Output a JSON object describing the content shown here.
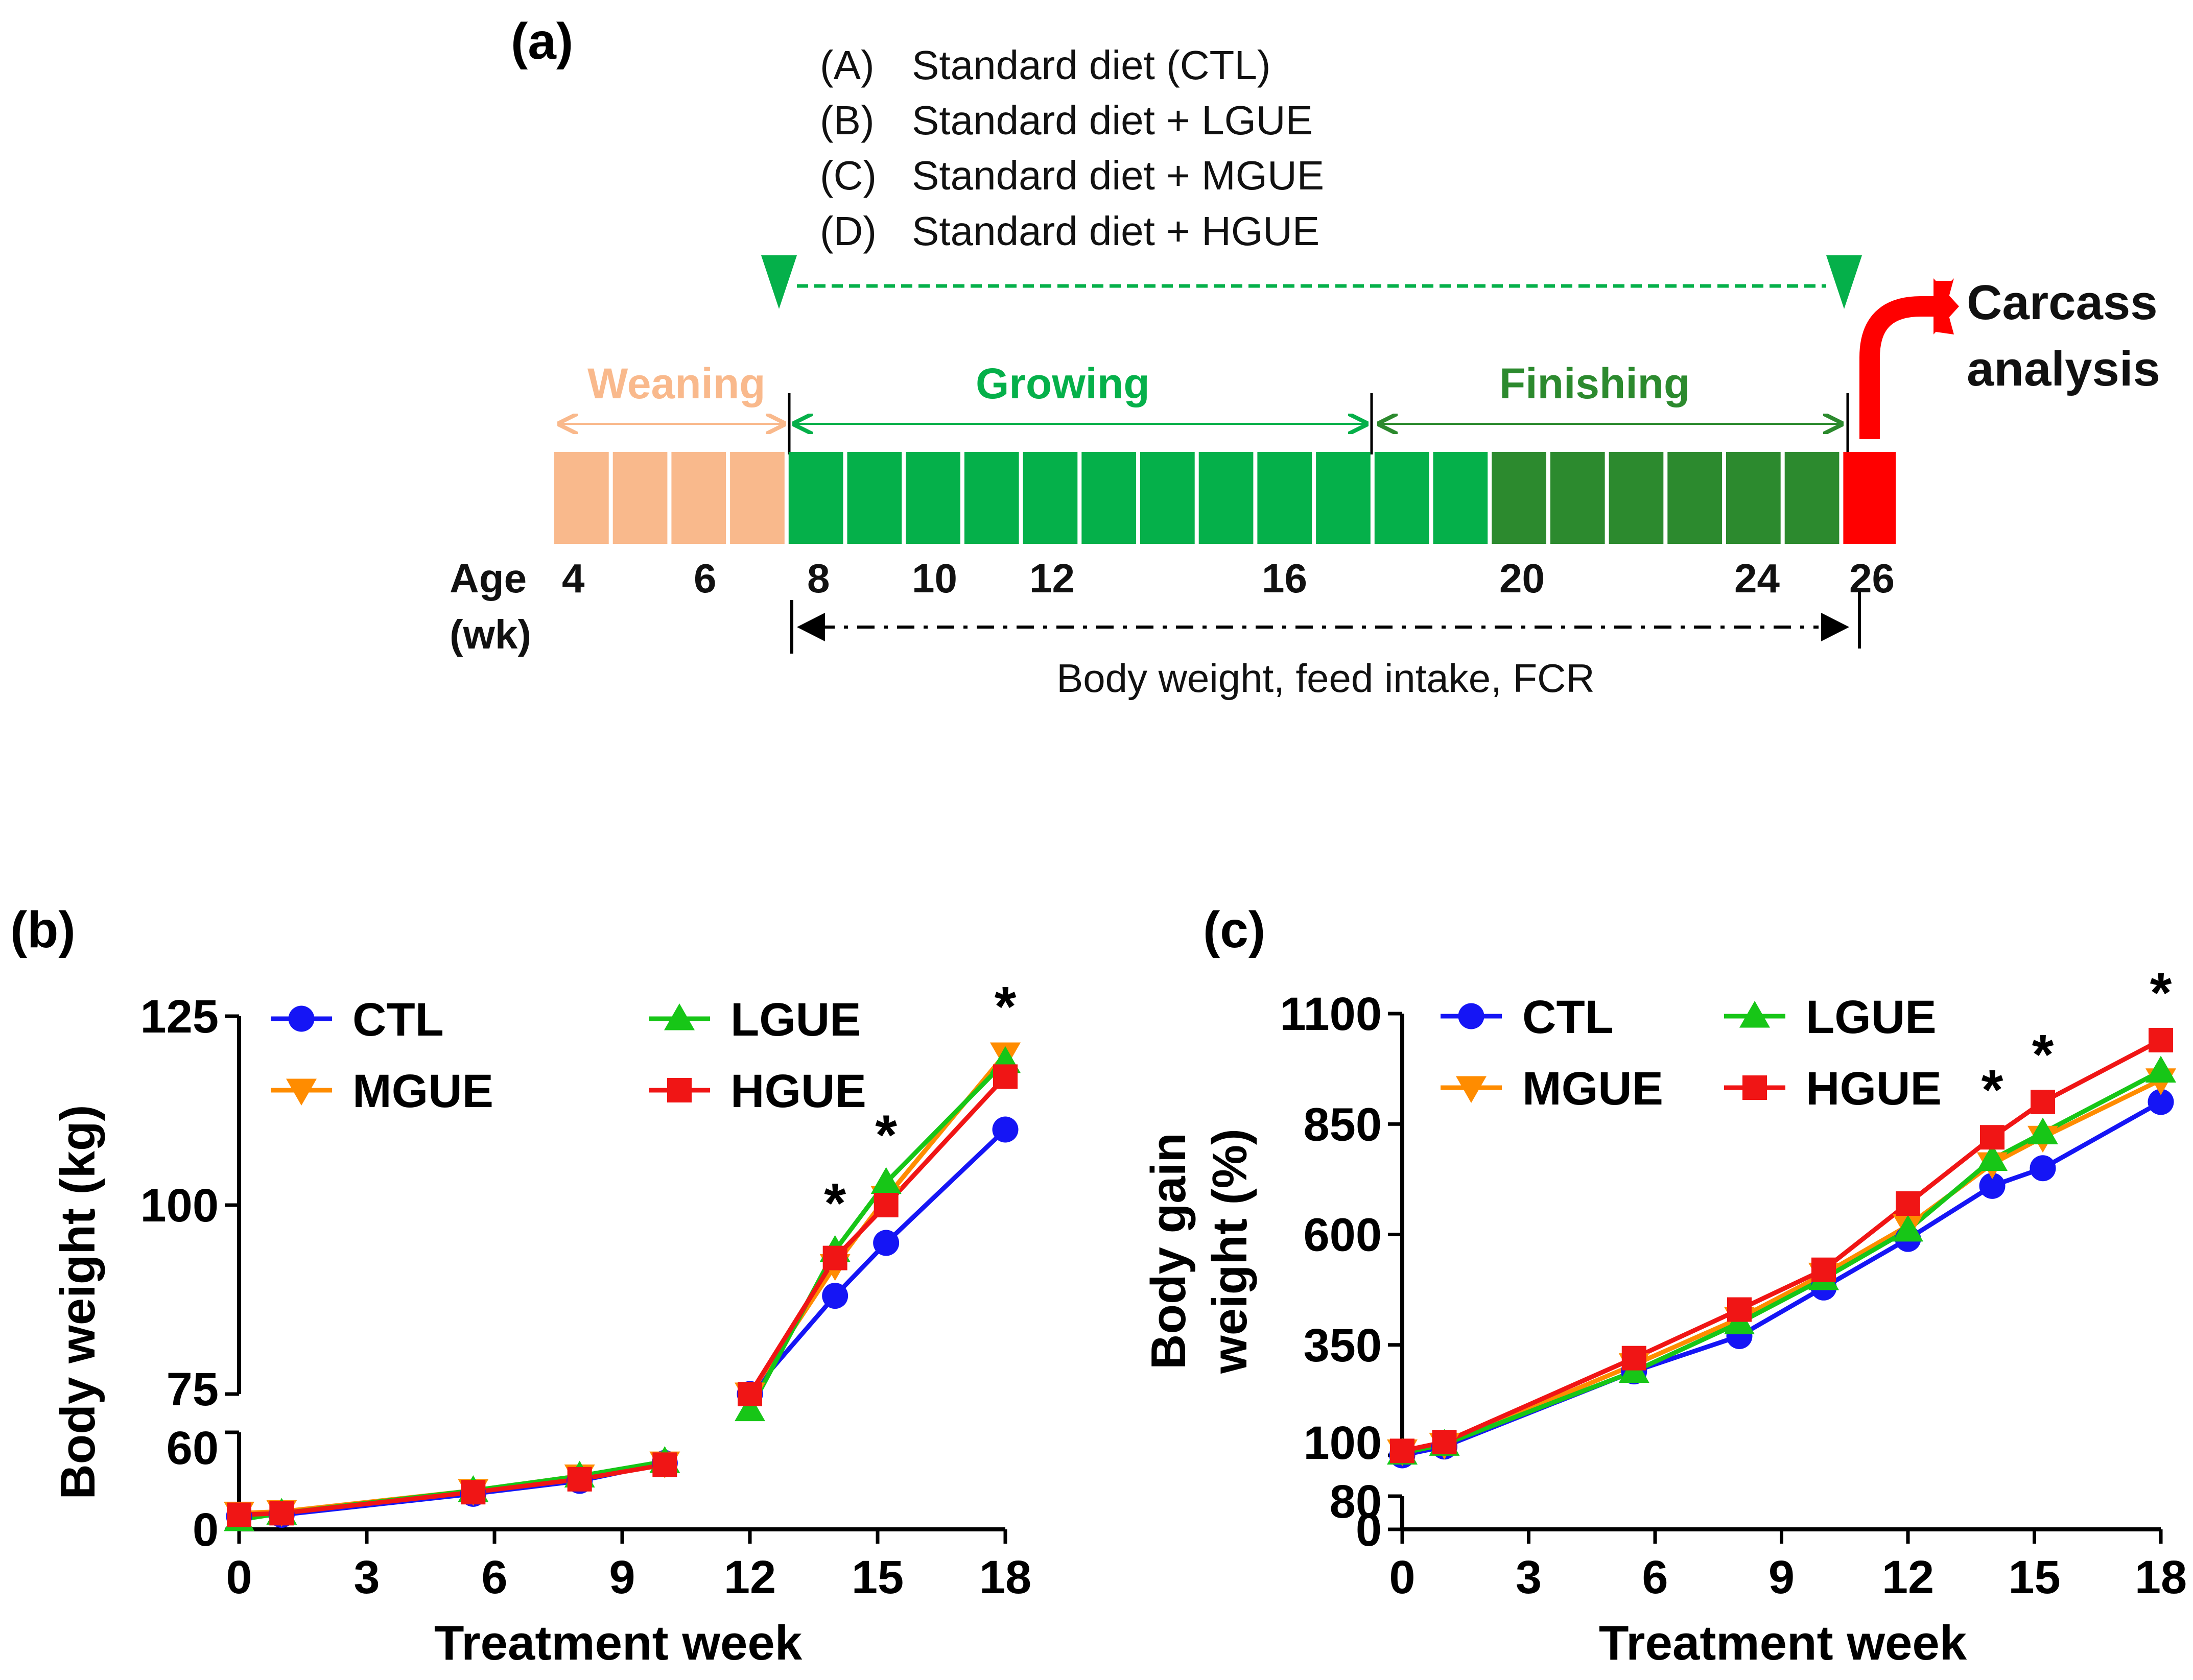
{
  "panel_a": {
    "label": "(a)",
    "diets": [
      {
        "code": "(A)",
        "text": "Standard diet (CTL)"
      },
      {
        "code": "(B)",
        "text": "Standard diet + LGUE"
      },
      {
        "code": "(C)",
        "text": "Standard diet + MGUE"
      },
      {
        "code": "(D)",
        "text": "Standard diet + HGUE"
      }
    ],
    "phases": {
      "weaning": "Weaning",
      "growing": "Growing",
      "finishing": "Finishing"
    },
    "carcass": [
      "Carcass",
      "analysis"
    ],
    "age_label": [
      "Age",
      "(wk)"
    ],
    "age_ticks": [
      "4",
      "6",
      "8",
      "10",
      "12",
      "16",
      "20",
      "24",
      "26"
    ],
    "measure_label": "Body weight, feed intake, FCR",
    "colors": {
      "weaning": "#F9B98C",
      "growing": "#05B04A",
      "finishing": "#2C8A2E",
      "carcass": "#FF0000",
      "dashed_arrow": "#05B04A"
    }
  },
  "series_colors": {
    "CTL": "#1515F5",
    "MGUE": "#FF8C00",
    "LGUE": "#17C617",
    "HGUE": "#F01515"
  },
  "chart_data": [
    {
      "id": "b",
      "label": "(b)",
      "type": "line",
      "title": "",
      "xlabel": "Treatment week",
      "ylabel": "Body weight (kg)",
      "xlim": [
        0,
        18
      ],
      "xticks": [
        "0",
        "3",
        "6",
        "9",
        "12",
        "15",
        "18"
      ],
      "ylim_lower": [
        0,
        60
      ],
      "ylim_upper": [
        75,
        125
      ],
      "yticks": [
        "0",
        "60",
        "75",
        "100",
        "125"
      ],
      "legend": [
        "CTL",
        "LGUE",
        "MGUE",
        "HGUE"
      ],
      "legend_position": "top-left",
      "significance": [
        {
          "x": 14,
          "mark": "*"
        },
        {
          "x": 15.2,
          "mark": "*"
        },
        {
          "x": 18,
          "mark": "*"
        }
      ],
      "series": [
        {
          "name": "CTL",
          "marker": "circle",
          "x": [
            0,
            1,
            5.5,
            8,
            10
          ],
          "values": [
            8,
            9,
            22,
            30,
            41
          ],
          "x2": [
            12,
            14,
            15.2,
            18
          ],
          "values2": [
            75,
            88,
            95,
            110
          ]
        },
        {
          "name": "MGUE",
          "marker": "triangle-down",
          "x": [
            0,
            1,
            5.5,
            8,
            10
          ],
          "values": [
            10,
            11,
            24,
            33,
            41
          ],
          "x2": [
            12,
            14,
            15.2,
            18
          ],
          "values2": [
            75,
            92,
            101,
            120
          ]
        },
        {
          "name": "LGUE",
          "marker": "triangle-up",
          "x": [
            0,
            1,
            5.5,
            8,
            10
          ],
          "values": [
            6,
            10,
            24,
            33,
            42
          ],
          "x2": [
            12,
            14,
            15.2,
            18
          ],
          "values2": [
            74,
            94,
            103,
            119
          ]
        },
        {
          "name": "HGUE",
          "marker": "square",
          "x": [
            0,
            1,
            5.5,
            8,
            10
          ],
          "values": [
            9,
            10,
            23,
            31,
            40
          ],
          "x2": [
            12,
            14,
            15.2,
            18
          ],
          "values2": [
            75,
            93,
            100,
            117
          ]
        }
      ]
    },
    {
      "id": "c",
      "label": "(c)",
      "type": "line",
      "title": "",
      "xlabel": "Treatment week",
      "ylabel": [
        "Body gain",
        "weight (%)"
      ],
      "xlim": [
        0,
        18
      ],
      "xticks": [
        "0",
        "3",
        "6",
        "9",
        "12",
        "15",
        "18"
      ],
      "ylim_lower": [
        0,
        80
      ],
      "ylim_upper": [
        100,
        1100
      ],
      "yticks": [
        "0",
        "80",
        "100",
        "350",
        "600",
        "850",
        "1100"
      ],
      "legend": [
        "CTL",
        "LGUE",
        "MGUE",
        "HGUE"
      ],
      "legend_position": "top-left",
      "significance": [
        {
          "x": 14,
          "mark": "*"
        },
        {
          "x": 15.2,
          "mark": "*"
        },
        {
          "x": 18,
          "mark": "*"
        }
      ],
      "series": [
        {
          "name": "CTL",
          "marker": "circle",
          "x": [
            0,
            1,
            5.5,
            8,
            10,
            12,
            14,
            15.2,
            18
          ],
          "values": [
            100,
            120,
            290,
            370,
            480,
            590,
            710,
            750,
            900
          ]
        },
        {
          "name": "MGUE",
          "marker": "triangle-down",
          "x": [
            0,
            1,
            5.5,
            8,
            10,
            12,
            14,
            15.2,
            18
          ],
          "values": [
            110,
            125,
            305,
            410,
            510,
            620,
            760,
            820,
            950
          ]
        },
        {
          "name": "LGUE",
          "marker": "triangle-up",
          "x": [
            0,
            1,
            5.5,
            8,
            10,
            12,
            14,
            15.2,
            18
          ],
          "values": [
            105,
            125,
            290,
            400,
            500,
            610,
            770,
            830,
            970
          ]
        },
        {
          "name": "HGUE",
          "marker": "square",
          "x": [
            0,
            1,
            5.5,
            8,
            10,
            12,
            14,
            15.2,
            18
          ],
          "values": [
            110,
            130,
            320,
            430,
            520,
            670,
            820,
            900,
            1040
          ]
        }
      ]
    }
  ]
}
